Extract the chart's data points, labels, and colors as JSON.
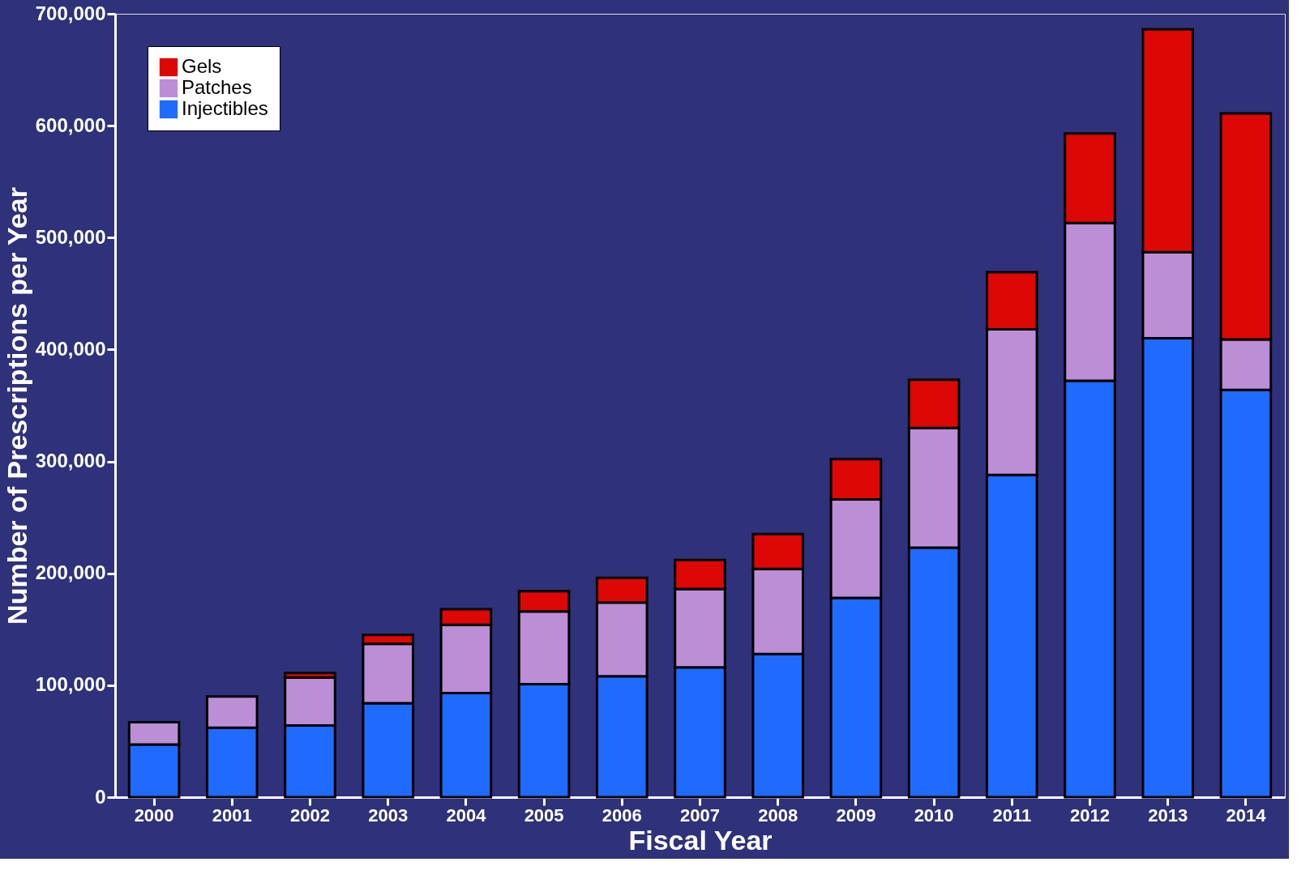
{
  "chart_data": {
    "type": "bar",
    "stacked": true,
    "xlabel": "Fiscal Year",
    "ylabel": "Number of Prescriptions per Year",
    "categories": [
      "2000",
      "2001",
      "2002",
      "2003",
      "2004",
      "2005",
      "2006",
      "2007",
      "2008",
      "2009",
      "2010",
      "2011",
      "2012",
      "2013",
      "2014"
    ],
    "series": [
      {
        "name": "Injectibles",
        "color": "#1f6bff",
        "values": [
          47000,
          62000,
          64000,
          84000,
          93000,
          101000,
          108000,
          116000,
          128000,
          178000,
          223000,
          288000,
          372000,
          410000,
          364000
        ]
      },
      {
        "name": "Patches",
        "color": "#bb8ed6",
        "values": [
          20000,
          28000,
          43000,
          53000,
          61000,
          65000,
          66000,
          70000,
          76000,
          88000,
          107000,
          130000,
          141000,
          77000,
          45000
        ]
      },
      {
        "name": "Gels",
        "color": "#dd0705",
        "values": [
          null,
          null,
          4000,
          8000,
          14000,
          18000,
          22000,
          26000,
          31000,
          36000,
          43000,
          51000,
          80000,
          199000,
          202000
        ]
      }
    ],
    "ylim": [
      0,
      700000
    ],
    "yticks": [
      0,
      {
        "value": 100000,
        "label": "100,000"
      },
      {
        "value": 200000,
        "label": "200,000"
      },
      {
        "value": 300000,
        "label": "300,000"
      },
      {
        "value": 400000,
        "label": "400,000"
      },
      {
        "value": 500000,
        "label": "500,000"
      },
      {
        "value": 600000,
        "label": "600,000"
      },
      {
        "value": 700000,
        "label": "700,000"
      }
    ],
    "legend": "top left",
    "grid": false
  }
}
